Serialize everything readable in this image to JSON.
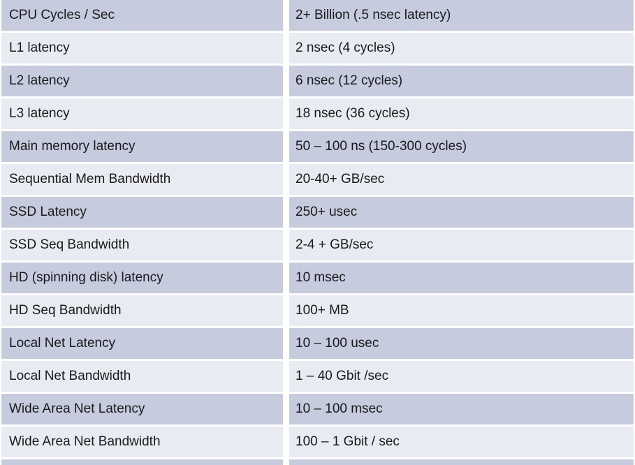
{
  "colors": {
    "band_dark": "#c6cbde",
    "band_light": "#e9ebf3",
    "gap": "#ffffff",
    "text": "#1a1a1a"
  },
  "table": {
    "rows": [
      {
        "label": "CPU Cycles / Sec",
        "value": "2+ Billion (.5 nsec latency)"
      },
      {
        "label": "L1 latency",
        "value": "2 nsec (4 cycles)"
      },
      {
        "label": "L2 latency",
        "value": "6 nsec (12 cycles)"
      },
      {
        "label": "L3 latency",
        "value": "18 nsec (36 cycles)"
      },
      {
        "label": "Main memory latency",
        "value": "50 – 100 ns (150-300 cycles)"
      },
      {
        "label": "Sequential Mem Bandwidth",
        "value": "20-40+ GB/sec"
      },
      {
        "label": "SSD Latency",
        "value": "250+ usec"
      },
      {
        "label": "SSD Seq Bandwidth",
        "value": "2-4 + GB/sec"
      },
      {
        "label": "HD (spinning disk) latency",
        "value": "10 msec"
      },
      {
        "label": "HD Seq Bandwidth",
        "value": "100+ MB"
      },
      {
        "label": "Local Net Latency",
        "value": "10 – 100 usec"
      },
      {
        "label": "Local Net Bandwidth",
        "value": "1 – 40 Gbit /sec"
      },
      {
        "label": "Wide Area Net Latency",
        "value": "10 – 100 msec"
      },
      {
        "label": "Wide Area Net Bandwidth",
        "value": "100 – 1 Gbit / sec"
      }
    ]
  },
  "chart_data": {
    "type": "table",
    "rows": [
      [
        "CPU Cycles / Sec",
        "2+ Billion (.5 nsec latency)"
      ],
      [
        "L1 latency",
        "2 nsec (4 cycles)"
      ],
      [
        "L2 latency",
        "6 nsec (12 cycles)"
      ],
      [
        "L3 latency",
        "18 nsec (36 cycles)"
      ],
      [
        "Main memory latency",
        "50 – 100 ns (150-300 cycles)"
      ],
      [
        "Sequential Mem Bandwidth",
        "20-40+ GB/sec"
      ],
      [
        "SSD Latency",
        "250+ usec"
      ],
      [
        "SSD Seq Bandwidth",
        "2-4 + GB/sec"
      ],
      [
        "HD (spinning disk) latency",
        "10 msec"
      ],
      [
        "HD Seq Bandwidth",
        "100+ MB"
      ],
      [
        "Local Net Latency",
        "10 – 100 usec"
      ],
      [
        "Local Net Bandwidth",
        "1 – 40 Gbit /sec"
      ],
      [
        "Wide Area Net Latency",
        "10 – 100 msec"
      ],
      [
        "Wide Area Net Bandwidth",
        "100 – 1 Gbit / sec"
      ]
    ],
    "layout": {
      "banded_rows": true,
      "header_row": false,
      "columns_count": 2
    }
  }
}
